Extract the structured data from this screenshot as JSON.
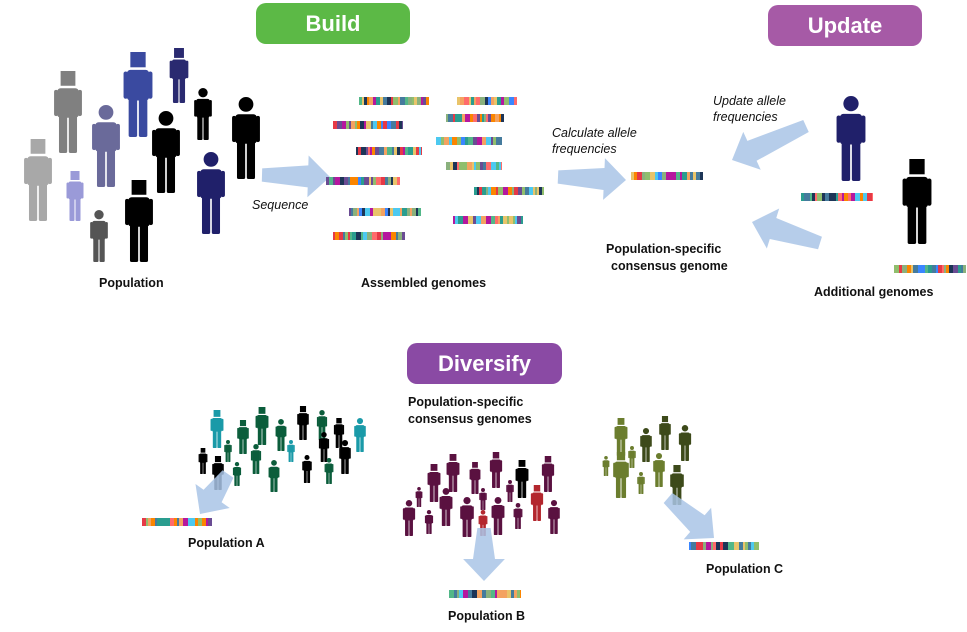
{
  "stages": {
    "build": {
      "label": "Build",
      "color": "#5cb946"
    },
    "update": {
      "label": "Update",
      "color": "#a65aa6"
    },
    "diversify": {
      "label": "Diversify",
      "color": "#8a4aa4"
    }
  },
  "labels": {
    "population": "Population",
    "sequence": "Sequence",
    "assembled_genomes": "Assembled genomes",
    "calculate_line1": "Calculate allele",
    "calculate_line2": "frequencies",
    "update_line1": "Update allele",
    "update_line2": "frequencies",
    "consensus_line1": "Population-specific",
    "consensus_line2": "consensus genome",
    "additional_genomes": "Additional genomes",
    "consensus_genomes_line1": "Population-specific",
    "consensus_genomes_line2": "consensus genomes",
    "population_a": "Population A",
    "population_b": "Population B",
    "population_c": "Population C"
  },
  "palette": {
    "arrow": "#a9c4e6",
    "genome_colors": [
      "#e63946",
      "#2a9d8f",
      "#457b9d",
      "#e9c46a",
      "#8ab17d",
      "#6a4c93",
      "#f4a261",
      "#1d3557",
      "#52b788",
      "#ff6b6b",
      "#4cc9f0",
      "#b5179e",
      "#3a86ff",
      "#fb8500",
      "#90be6d"
    ],
    "population_a": [
      "#0b5d3b",
      "#1a9aa8",
      "#000000"
    ],
    "population_b": [
      "#5a1140",
      "#000000",
      "#b3272e"
    ],
    "population_c": [
      "#6b7d2e",
      "#3d4a1a"
    ]
  },
  "icons": [
    "person-icon",
    "genome-bar-icon",
    "arrow-icon"
  ]
}
